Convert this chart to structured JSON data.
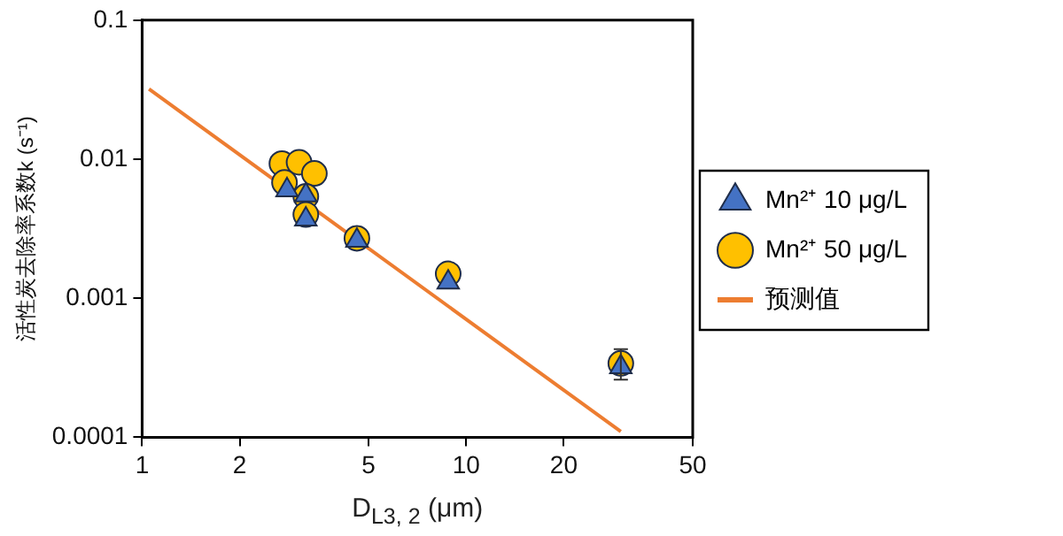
{
  "chart_data": {
    "type": "scatter",
    "xlabel": "D$_{L3, 2}$ (μm)",
    "ylabel": "活性炭去除率系数k (s⁻¹)",
    "log": "xy",
    "xlim": [
      1,
      50
    ],
    "xticks": [
      1,
      2,
      5,
      10,
      20,
      50
    ],
    "ylim": [
      0.0001,
      0.1
    ],
    "yticks": [
      0.0001,
      0.001,
      0.01,
      0.1
    ],
    "grid": false,
    "legend": "right",
    "series": [
      {
        "name": "Mn²⁺ 10 μg/L",
        "color": "#4472c4",
        "marker": "triangle",
        "x": [
          2.8,
          3.2,
          3.2,
          4.6,
          8.8,
          30
        ],
        "values": [
          0.006,
          0.0055,
          0.0037,
          0.0026,
          0.0013,
          0.00032
        ],
        "errors": [
          null,
          null,
          null,
          null,
          null,
          [
            0.00026,
            0.00043
          ]
        ]
      },
      {
        "name": "Mn²⁺ 50 μg/L",
        "color": "#ffc000",
        "marker": "circle",
        "x": [
          2.7,
          3.05,
          3.4,
          2.75,
          3.2,
          3.2,
          4.6,
          8.8,
          30
        ],
        "values": [
          0.0093,
          0.0095,
          0.0079,
          0.0068,
          0.0054,
          0.004,
          0.0027,
          0.0015,
          0.00034
        ]
      },
      {
        "name": "预测值",
        "type": "line",
        "color": "#ed7d31",
        "marker": "none",
        "x": [
          1.05,
          30
        ],
        "values": [
          0.032,
          0.00011
        ]
      }
    ]
  }
}
